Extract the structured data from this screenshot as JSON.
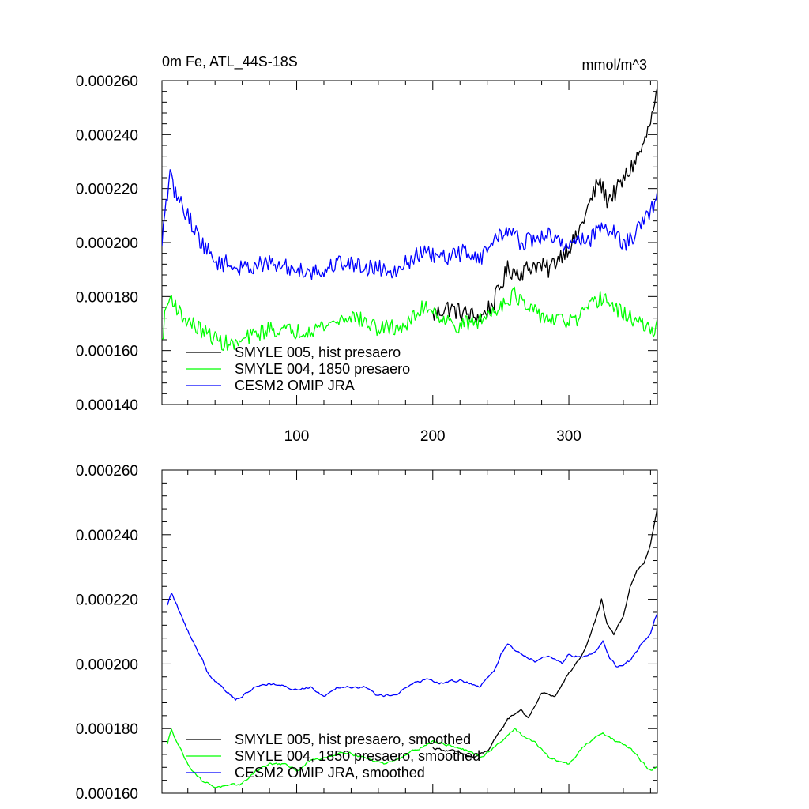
{
  "chart_data": [
    {
      "type": "line",
      "title_left": "0m Fe, ATL_44S-18S",
      "title_right": "mmol/m^3",
      "xlim": [
        1,
        365
      ],
      "ylim": [
        0.00014,
        0.00026
      ],
      "x_ticks": [
        100,
        200,
        300
      ],
      "x_tick_labels": [
        "100",
        "200",
        "300"
      ],
      "y_ticks": [
        0.00014,
        0.00016,
        0.00018,
        0.0002,
        0.00022,
        0.00024,
        0.00026
      ],
      "y_tick_labels": [
        "0.000140",
        "0.000160",
        "0.000180",
        "0.000200",
        "0.000220",
        "0.000240",
        "0.000260"
      ],
      "legend_position": "bottom-left",
      "series": [
        {
          "name": "SMYLE 005, hist presaero",
          "color": "#000000",
          "noise": 3.5e-06,
          "points": [
            [
              200,
              0.000173
            ],
            [
              210,
              0.000176
            ],
            [
              222,
              0.000174
            ],
            [
              235,
              0.000172
            ],
            [
              245,
              0.000178
            ],
            [
              255,
              0.00019
            ],
            [
              265,
              0.000189
            ],
            [
              275,
              0.000192
            ],
            [
              285,
              0.00019
            ],
            [
              295,
              0.000196
            ],
            [
              305,
              0.000201
            ],
            [
              315,
              0.000214
            ],
            [
              322,
              0.000223
            ],
            [
              328,
              0.000216
            ],
            [
              335,
              0.000219
            ],
            [
              345,
              0.000227
            ],
            [
              355,
              0.000236
            ],
            [
              362,
              0.000248
            ],
            [
              365,
              0.000255
            ]
          ]
        },
        {
          "name": "SMYLE 004, 1850 presaero",
          "color": "#00ff00",
          "noise": 3e-06,
          "points": [
            [
              1,
              0.000163
            ],
            [
              4,
              0.000176
            ],
            [
              8,
              0.00018
            ],
            [
              15,
              0.000173
            ],
            [
              25,
              0.000169
            ],
            [
              35,
              0.000166
            ],
            [
              45,
              0.000163
            ],
            [
              55,
              0.000162
            ],
            [
              65,
              0.000165
            ],
            [
              80,
              0.000168
            ],
            [
              100,
              0.000167
            ],
            [
              120,
              0.000169
            ],
            [
              140,
              0.000173
            ],
            [
              160,
              0.000168
            ],
            [
              180,
              0.000169
            ],
            [
              195,
              0.000177
            ],
            [
              200,
              0.000175
            ],
            [
              215,
              0.000169
            ],
            [
              235,
              0.000171
            ],
            [
              245,
              0.000175
            ],
            [
              260,
              0.000181
            ],
            [
              270,
              0.000175
            ],
            [
              290,
              0.000171
            ],
            [
              305,
              0.000171
            ],
            [
              320,
              0.000178
            ],
            [
              325,
              0.00018
            ],
            [
              335,
              0.000175
            ],
            [
              350,
              0.000171
            ],
            [
              360,
              0.000167
            ],
            [
              365,
              0.000169
            ]
          ]
        },
        {
          "name": "CESM2 OMIP JRA",
          "color": "#0000ff",
          "noise": 3.2e-06,
          "points": [
            [
              1,
              0.000197
            ],
            [
              3,
              0.000212
            ],
            [
              7,
              0.000224
            ],
            [
              12,
              0.000217
            ],
            [
              20,
              0.00021
            ],
            [
              30,
              0.0002
            ],
            [
              40,
              0.000193
            ],
            [
              50,
              0.000192
            ],
            [
              60,
              0.00019
            ],
            [
              70,
              0.000192
            ],
            [
              80,
              0.000192
            ],
            [
              100,
              0.00019
            ],
            [
              120,
              0.000189
            ],
            [
              130,
              0.000193
            ],
            [
              150,
              0.000191
            ],
            [
              170,
              0.00019
            ],
            [
              180,
              0.000192
            ],
            [
              190,
              0.000196
            ],
            [
              200,
              0.000195
            ],
            [
              210,
              0.000194
            ],
            [
              225,
              0.000197
            ],
            [
              235,
              0.000194
            ],
            [
              245,
              0.000201
            ],
            [
              255,
              0.000205
            ],
            [
              265,
              0.0002
            ],
            [
              275,
              0.000201
            ],
            [
              285,
              0.000203
            ],
            [
              295,
              0.000199
            ],
            [
              305,
              0.000201
            ],
            [
              315,
              0.000201
            ],
            [
              325,
              0.000207
            ],
            [
              335,
              0.000203
            ],
            [
              340,
              0.000199
            ],
            [
              350,
              0.000204
            ],
            [
              360,
              0.000211
            ],
            [
              365,
              0.000219
            ]
          ]
        }
      ]
    },
    {
      "type": "line",
      "title_left": "",
      "title_right": "",
      "xlim": [
        1,
        365
      ],
      "ylim": [
        0.00016,
        0.00026
      ],
      "x_ticks": [
        100,
        200,
        300
      ],
      "x_tick_labels": [],
      "y_ticks": [
        0.00016,
        0.00018,
        0.0002,
        0.00022,
        0.00024,
        0.00026
      ],
      "y_tick_labels": [
        "0.000160",
        "0.000180",
        "0.000200",
        "0.000220",
        "0.000240",
        "0.000260"
      ],
      "legend_position": "bottom-left",
      "series": [
        {
          "name": "SMYLE 005, hist presaero, smoothed",
          "color": "#000000",
          "noise": 8e-07,
          "points": [
            [
              200,
              0.000174
            ],
            [
              215,
              0.000173
            ],
            [
              230,
              0.000171
            ],
            [
              240,
              0.000173
            ],
            [
              248,
              0.000178
            ],
            [
              255,
              0.000183
            ],
            [
              265,
              0.000186
            ],
            [
              270,
              0.000183
            ],
            [
              280,
              0.000191
            ],
            [
              290,
              0.00019
            ],
            [
              300,
              0.000197
            ],
            [
              310,
              0.000203
            ],
            [
              315,
              0.000208
            ],
            [
              320,
              0.000214
            ],
            [
              324,
              0.00022
            ],
            [
              328,
              0.000212
            ],
            [
              333,
              0.000209
            ],
            [
              340,
              0.000215
            ],
            [
              345,
              0.000224
            ],
            [
              350,
              0.000229
            ],
            [
              355,
              0.000231
            ],
            [
              360,
              0.000237
            ],
            [
              365,
              0.000248
            ]
          ]
        },
        {
          "name": "SMYLE 004, 1850 presaero, smoothed",
          "color": "#00ff00",
          "noise": 8e-07,
          "points": [
            [
              5,
              0.000175
            ],
            [
              8,
              0.00018
            ],
            [
              12,
              0.000176
            ],
            [
              20,
              0.000169
            ],
            [
              30,
              0.000164
            ],
            [
              40,
              0.000162
            ],
            [
              50,
              0.000162
            ],
            [
              60,
              0.000163
            ],
            [
              70,
              0.000167
            ],
            [
              80,
              0.000169
            ],
            [
              90,
              0.000169
            ],
            [
              100,
              0.000167
            ],
            [
              110,
              0.00017
            ],
            [
              120,
              0.000171
            ],
            [
              135,
              0.000173
            ],
            [
              150,
              0.000171
            ],
            [
              165,
              0.000169
            ],
            [
              180,
              0.000172
            ],
            [
              190,
              0.000174
            ],
            [
              200,
              0.000176
            ],
            [
              210,
              0.000175
            ],
            [
              220,
              0.000174
            ],
            [
              235,
              0.000171
            ],
            [
              250,
              0.000176
            ],
            [
              260,
              0.00018
            ],
            [
              268,
              0.000177
            ],
            [
              275,
              0.000176
            ],
            [
              285,
              0.000171
            ],
            [
              300,
              0.000169
            ],
            [
              310,
              0.000174
            ],
            [
              325,
              0.000179
            ],
            [
              335,
              0.000176
            ],
            [
              345,
              0.000174
            ],
            [
              355,
              0.000169
            ],
            [
              360,
              0.000167
            ],
            [
              365,
              0.000168
            ]
          ]
        },
        {
          "name": "CESM2 OMIP JRA, smoothed",
          "color": "#0000ff",
          "noise": 8e-07,
          "points": [
            [
              5,
              0.000218
            ],
            [
              8,
              0.000222
            ],
            [
              12,
              0.000218
            ],
            [
              18,
              0.000212
            ],
            [
              25,
              0.000206
            ],
            [
              30,
              0.000202
            ],
            [
              35,
              0.000197
            ],
            [
              45,
              0.000193
            ],
            [
              55,
              0.000189
            ],
            [
              60,
              0.00019
            ],
            [
              70,
              0.000193
            ],
            [
              80,
              0.000194
            ],
            [
              90,
              0.000193
            ],
            [
              100,
              0.000192
            ],
            [
              110,
              0.000193
            ],
            [
              120,
              0.00019
            ],
            [
              130,
              0.000193
            ],
            [
              150,
              0.000193
            ],
            [
              160,
              0.00019
            ],
            [
              175,
              0.000191
            ],
            [
              185,
              0.000194
            ],
            [
              195,
              0.000195
            ],
            [
              205,
              0.000194
            ],
            [
              220,
              0.000195
            ],
            [
              235,
              0.000193
            ],
            [
              245,
              0.000198
            ],
            [
              250,
              0.000203
            ],
            [
              255,
              0.000206
            ],
            [
              265,
              0.000203
            ],
            [
              275,
              0.000201
            ],
            [
              285,
              0.000203
            ],
            [
              295,
              0.0002
            ],
            [
              300,
              0.000203
            ],
            [
              310,
              0.000202
            ],
            [
              320,
              0.000204
            ],
            [
              325,
              0.000207
            ],
            [
              330,
              0.000202
            ],
            [
              335,
              0.000199
            ],
            [
              345,
              0.000201
            ],
            [
              355,
              0.000207
            ],
            [
              360,
              0.00021
            ],
            [
              365,
              0.000216
            ]
          ]
        }
      ]
    }
  ]
}
